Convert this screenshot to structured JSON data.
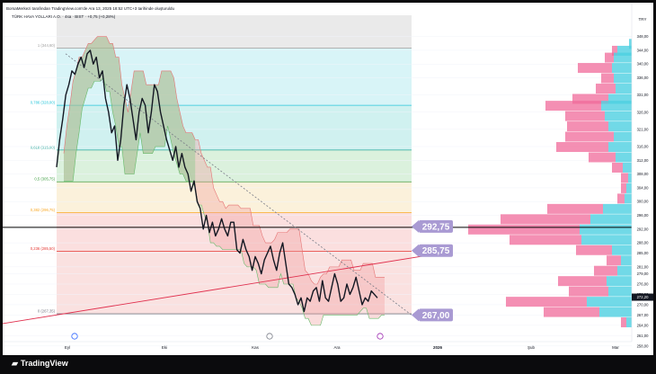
{
  "header_text": "BorsaMerkezi tarafından TradingView.com'de Ara 13, 2025 18:52 UTC+3 tarihinde oluşturuldu",
  "symbol_text": "TÜRK HAVA YOLLARI A.O. · 4sa · BIST · +0,75 (+0,28%)",
  "brand": "TradingView",
  "colors": {
    "price_line": "#131722",
    "cloud_green": "#8bc98f",
    "cloud_red": "#f29a9a",
    "trend_up": "#e0304e",
    "trend_down": "#787b86",
    "vp_pink": "#f06a9a",
    "vp_cyan": "#4dd0e1",
    "badge": "#a99ad3"
  },
  "chart_data": {
    "type": "line",
    "instrument": "TÜRK HAVA YOLLARI A.O.",
    "interval": "4sa",
    "exchange": "BIST",
    "change": "+0,75 (+0,28%)",
    "currency": "TRY",
    "ylim": [
      259,
      350
    ],
    "x_ticks": [
      "Eyl",
      "Eki",
      "Kas",
      "Ara",
      "2026",
      "Şub",
      "Mar"
    ],
    "y_ticks": [
      "348,00",
      "344,00",
      "340,00",
      "336,00",
      "331,00",
      "326,00",
      "321,00",
      "316,00",
      "312,00",
      "308,00",
      "304,00",
      "300,00",
      "296,00",
      "292,00",
      "288,00",
      "285,00",
      "281,00",
      "279,00",
      "276,00",
      "273,00",
      "270,00",
      "267,00",
      "264,00",
      "261,00",
      "258,00"
    ],
    "price_series": {
      "t": [
        0,
        4,
        8,
        12,
        16,
        20,
        24,
        28,
        32,
        36,
        40,
        44,
        48,
        52,
        56,
        60,
        64,
        68,
        72,
        76,
        80,
        84,
        88,
        92,
        96,
        100,
        104,
        108,
        112,
        116,
        120,
        124,
        128,
        132,
        136,
        140,
        144,
        148,
        152,
        156,
        160,
        164,
        168,
        172,
        176,
        180,
        184,
        188,
        192,
        196,
        200,
        204,
        208,
        212,
        216,
        220,
        224,
        228,
        232,
        236,
        240,
        244,
        248,
        252,
        256,
        260,
        264,
        268,
        272,
        276,
        280,
        284,
        288,
        292,
        296,
        300,
        304,
        308,
        312,
        316,
        320,
        324,
        328,
        332,
        336,
        340,
        344,
        348,
        352,
        356,
        360,
        364,
        368,
        372,
        376,
        380,
        384,
        388,
        392,
        396,
        400,
        404,
        408,
        412,
        416,
        420
      ],
      "close": [
        310,
        318,
        324,
        331,
        334,
        338,
        337,
        340,
        342,
        339,
        343,
        344,
        340,
        342,
        336,
        338,
        330,
        326,
        320,
        322,
        312,
        318,
        328,
        334,
        330,
        324,
        318,
        326,
        330,
        328,
        320,
        326,
        334,
        332,
        326,
        322,
        318,
        315,
        312,
        316,
        310,
        314,
        310,
        308,
        303,
        306,
        300,
        298,
        292,
        296,
        291,
        294,
        290,
        292,
        295,
        292,
        290,
        294,
        294,
        286,
        285,
        289,
        286,
        284,
        280,
        284,
        282,
        279,
        283,
        285,
        287,
        283,
        280,
        285,
        288,
        282,
        276,
        275,
        273,
        270,
        272,
        268,
        272,
        271,
        274,
        275,
        271,
        277,
        272,
        271,
        275,
        279,
        276,
        271,
        272,
        276,
        273,
        275,
        278,
        274,
        270,
        272,
        271,
        274,
        273,
        272
      ]
    },
    "fibonacci": [
      {
        "ratio": "1",
        "label": "1 (344,60)",
        "value": 344.6
      },
      {
        "ratio": "0.786",
        "label": "0,786 (328,00)",
        "value": 328.0
      },
      {
        "ratio": "0.618",
        "label": "0,618 (315,00)",
        "value": 315.0
      },
      {
        "ratio": "0.5",
        "label": "0,5 (305,75)",
        "value": 305.75
      },
      {
        "ratio": "0.382",
        "label": "0,382 (296,75)",
        "value": 296.75
      },
      {
        "ratio": "0.236",
        "label": "0,236 (285,50)",
        "value": 285.5
      },
      {
        "ratio": "0",
        "label": "0 (267,35)",
        "value": 267.35
      }
    ],
    "horizontal_line": 292.5,
    "trend_up": {
      "from": [
        0,
        264.5
      ],
      "to": [
        500,
        285.5
      ]
    },
    "trend_down": {
      "from": [
        70,
        343
      ],
      "to": [
        455,
        267
      ]
    },
    "price_labels": [
      {
        "text": "292,75",
        "value": 292.75
      },
      {
        "text": "285,75",
        "value": 285.75
      },
      {
        "text": "267,00",
        "value": 267.0
      }
    ],
    "last_price": {
      "text": "272,20",
      "value": 272.2
    },
    "volume_profile": [
      {
        "price": 346,
        "pink": 0,
        "cyan": 3
      },
      {
        "price": 344,
        "pink": 6,
        "cyan": 16
      },
      {
        "price": 342,
        "pink": 10,
        "cyan": 20
      },
      {
        "price": 339,
        "pink": 38,
        "cyan": 22
      },
      {
        "price": 336,
        "pink": 14,
        "cyan": 20
      },
      {
        "price": 333,
        "pink": 22,
        "cyan": 18
      },
      {
        "price": 330,
        "pink": 40,
        "cyan": 26
      },
      {
        "price": 328,
        "pink": 62,
        "cyan": 34
      },
      {
        "price": 325,
        "pink": 44,
        "cyan": 30
      },
      {
        "price": 322,
        "pink": 46,
        "cyan": 26
      },
      {
        "price": 319,
        "pink": 54,
        "cyan": 20
      },
      {
        "price": 316,
        "pink": 58,
        "cyan": 26
      },
      {
        "price": 313,
        "pink": 30,
        "cyan": 18
      },
      {
        "price": 310,
        "pink": 12,
        "cyan": 10
      },
      {
        "price": 307,
        "pink": 8,
        "cyan": 4
      },
      {
        "price": 304,
        "pink": 6,
        "cyan": 6
      },
      {
        "price": 301,
        "pink": 8,
        "cyan": 8
      },
      {
        "price": 298,
        "pink": 62,
        "cyan": 32
      },
      {
        "price": 295,
        "pink": 100,
        "cyan": 46
      },
      {
        "price": 292,
        "pink": 124,
        "cyan": 58
      },
      {
        "price": 289,
        "pink": 80,
        "cyan": 56
      },
      {
        "price": 286,
        "pink": 40,
        "cyan": 22
      },
      {
        "price": 283,
        "pink": 16,
        "cyan": 12
      },
      {
        "price": 280,
        "pink": 26,
        "cyan": 16
      },
      {
        "price": 277,
        "pink": 54,
        "cyan": 28
      },
      {
        "price": 274,
        "pink": 44,
        "cyan": 26
      },
      {
        "price": 271,
        "pink": 90,
        "cyan": 50
      },
      {
        "price": 268,
        "pink": 62,
        "cyan": 36
      },
      {
        "price": 265,
        "pink": 6,
        "cyan": 6
      }
    ]
  }
}
